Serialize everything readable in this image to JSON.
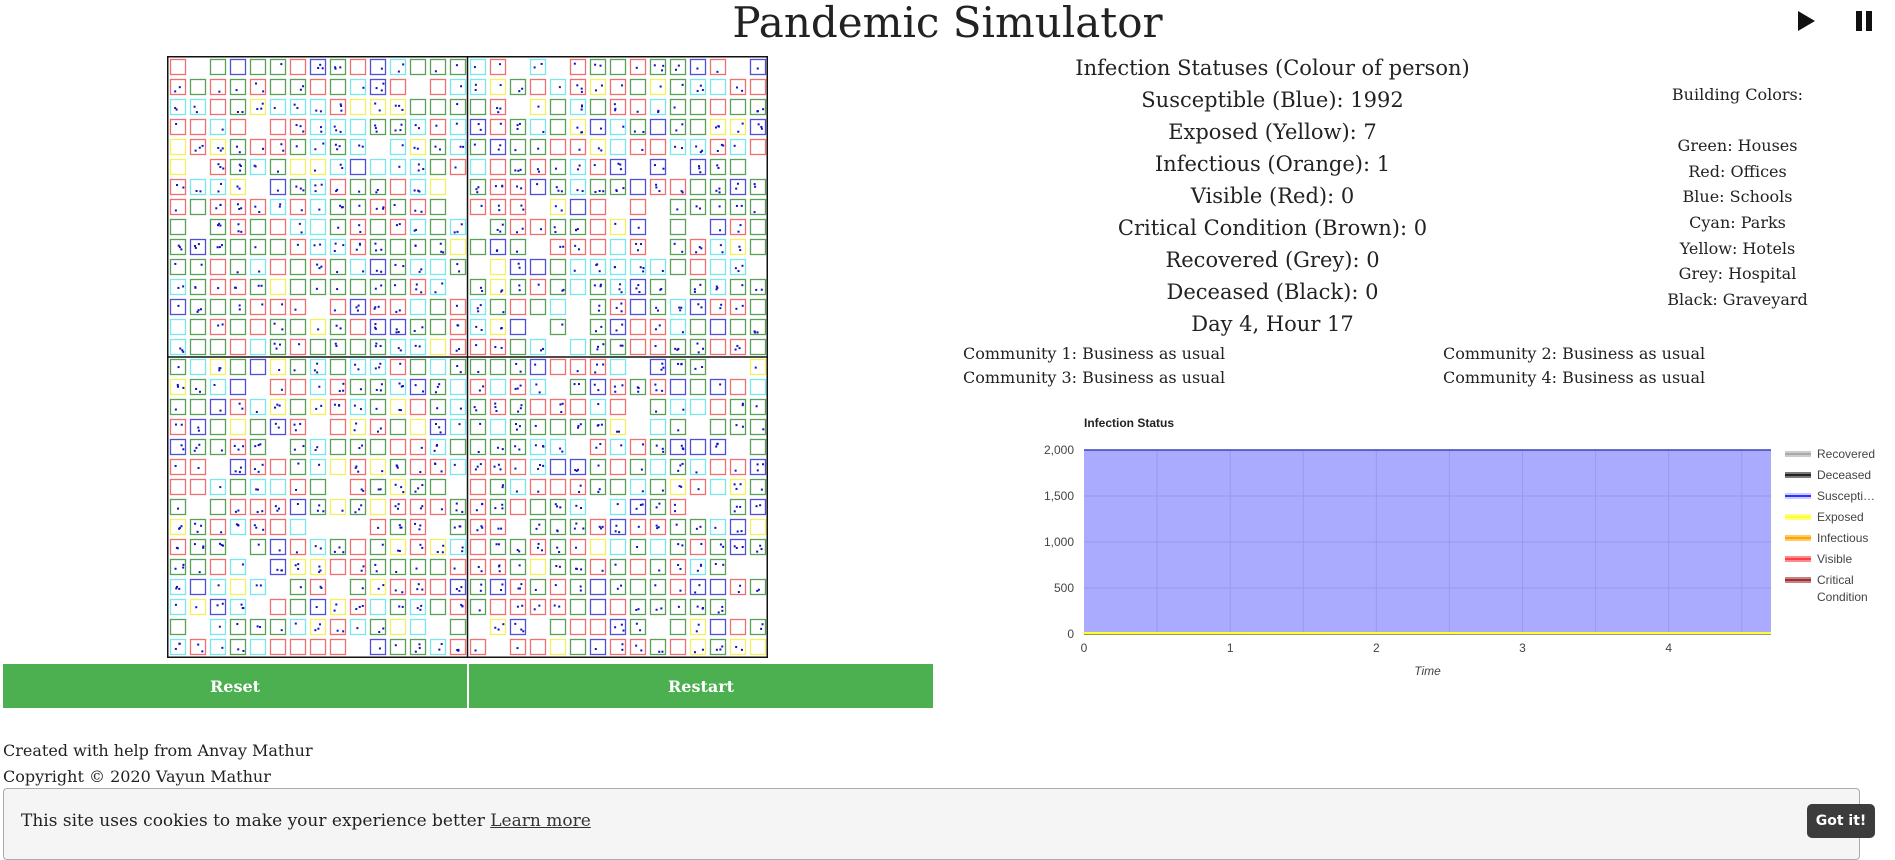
{
  "header": {
    "title": "Pandemic Simulator"
  },
  "controls": {
    "play_icon": "play-icon",
    "pause_icon": "pause-icon",
    "reset_label": "Reset",
    "restart_label": "Restart"
  },
  "simulation": {
    "communities_grid": [
      2,
      2
    ],
    "building_colors": {
      "house": "#5aa05a",
      "office": "#ee7070",
      "school": "#5050d8",
      "park": "#7be6f0",
      "hotel": "#f5f060",
      "hospital": "#999999",
      "graveyard": "#222222"
    },
    "person_color": "#1010c0"
  },
  "infection": {
    "heading": "Infection Statuses (Colour of person)",
    "lines": [
      "Susceptible (Blue): 1992",
      "Exposed (Yellow): 7",
      "Infectious (Orange): 1",
      "Visible (Red): 0",
      "Critical Condition (Brown): 0",
      "Recovered (Grey): 0",
      "Deceased (Black): 0",
      "Day 4, Hour 17"
    ]
  },
  "buildings": {
    "heading": "Building Colors:",
    "items": [
      "Green: Houses",
      "Red: Offices",
      "Blue: Schools",
      "Cyan: Parks",
      "Yellow: Hotels",
      "Grey: Hospital",
      "Black: Graveyard"
    ]
  },
  "communities": [
    "Community 1: Business as usual",
    "Community 2: Business as usual",
    "Community 3: Business as usual",
    "Community 4: Business as usual"
  ],
  "chart_data": {
    "type": "area",
    "title": "Infection Status",
    "xlabel": "Time",
    "ylabel": "",
    "xlim": [
      0,
      4.7
    ],
    "ylim": [
      0,
      2000
    ],
    "xticks": [
      0,
      1,
      2,
      3,
      4
    ],
    "yticks": [
      0,
      500,
      1000,
      1500,
      2000
    ],
    "ytick_labels": [
      "0",
      "500",
      "1,000",
      "1,500",
      "2,000"
    ],
    "stacked": true,
    "legend_position": "right",
    "x": [
      0,
      4.7
    ],
    "series": [
      {
        "name": "Susceptible",
        "legend_label": "Suscepti…",
        "color": "#3030ff",
        "values": [
          2000,
          1992
        ]
      },
      {
        "name": "Exposed",
        "legend_label": "Exposed",
        "color": "#ffff30",
        "values": [
          0,
          7
        ]
      },
      {
        "name": "Infectious",
        "legend_label": "Infectious",
        "color": "#ffa500",
        "values": [
          0,
          1
        ]
      },
      {
        "name": "Recovered",
        "legend_label": "Recovered",
        "color": "#aaaaaa",
        "values": [
          0,
          0
        ]
      },
      {
        "name": "Deceased",
        "legend_label": "Deceased",
        "color": "#222222",
        "values": [
          0,
          0
        ]
      },
      {
        "name": "Visible",
        "legend_label": "Visible",
        "color": "#ff4040",
        "values": [
          0,
          0
        ]
      },
      {
        "name": "Critical Condition",
        "legend_label": "Critical Condition",
        "color": "#a03030",
        "values": [
          0,
          0
        ]
      }
    ],
    "legend_order": [
      "Recovered",
      "Deceased",
      "Susceptible",
      "Exposed",
      "Infectious",
      "Visible",
      "Critical Condition"
    ]
  },
  "footer": {
    "credit": "Created with help from Anvay Mathur",
    "copyright": "Copyright © 2020 Vayun Mathur"
  },
  "cookie": {
    "message": "This site uses cookies to make your experience better",
    "link": "Learn more",
    "button": "Got it!"
  }
}
